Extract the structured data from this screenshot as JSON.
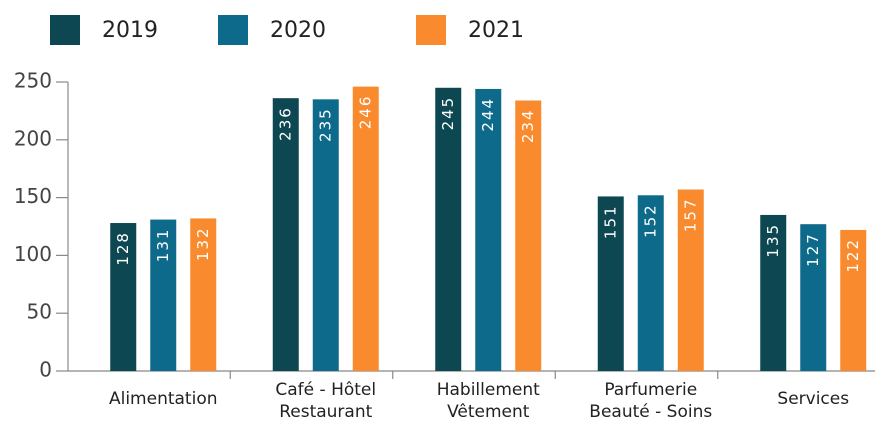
{
  "chart_data": {
    "type": "bar",
    "categories": [
      "Alimentation",
      "Café - Hôtel\nRestaurant",
      "Habillement\nVêtement",
      "Parfumerie\nBeauté - Soins",
      "Services"
    ],
    "series": [
      {
        "name": "2019",
        "color": "#0d4752",
        "values": [
          128,
          236,
          245,
          151,
          135
        ]
      },
      {
        "name": "2020",
        "color": "#0e6a8a",
        "values": [
          131,
          235,
          244,
          152,
          127
        ]
      },
      {
        "name": "2021",
        "color": "#f98a2e",
        "values": [
          132,
          246,
          234,
          157,
          122
        ]
      }
    ],
    "ylim": [
      0,
      250
    ],
    "yticks": [
      0,
      50,
      100,
      150,
      200,
      250
    ],
    "grid": false,
    "legend": "top"
  }
}
